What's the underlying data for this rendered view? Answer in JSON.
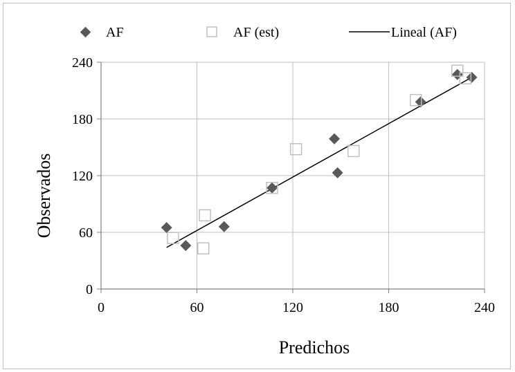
{
  "chart_data": {
    "type": "scatter",
    "title": "",
    "xlabel": "Predichos",
    "ylabel": "Observados",
    "xlim": [
      0,
      240
    ],
    "ylim": [
      0,
      240
    ],
    "xticks": [
      0,
      60,
      120,
      180,
      240
    ],
    "yticks": [
      0,
      60,
      120,
      180,
      240
    ],
    "grid": true,
    "legend_position": "top",
    "series": [
      {
        "name": "AF",
        "marker": "filled-diamond",
        "color": "#595959",
        "points": [
          [
            41,
            65
          ],
          [
            53,
            46
          ],
          [
            77,
            66
          ],
          [
            107,
            107
          ],
          [
            146,
            159
          ],
          [
            148,
            123
          ],
          [
            200,
            198
          ],
          [
            223,
            227
          ],
          [
            232,
            224
          ]
        ]
      },
      {
        "name": "AF (est)",
        "marker": "open-square",
        "color": "#bfbfbf",
        "points": [
          [
            45,
            54
          ],
          [
            64,
            43
          ],
          [
            65,
            78
          ],
          [
            107,
            107
          ],
          [
            122,
            148
          ],
          [
            158,
            146
          ],
          [
            197,
            200
          ],
          [
            223,
            231
          ],
          [
            228,
            223
          ]
        ]
      },
      {
        "name": "Lineal (AF)",
        "marker": "line",
        "color": "#000000",
        "line": [
          [
            41,
            44
          ],
          [
            232,
            224
          ]
        ]
      }
    ]
  }
}
